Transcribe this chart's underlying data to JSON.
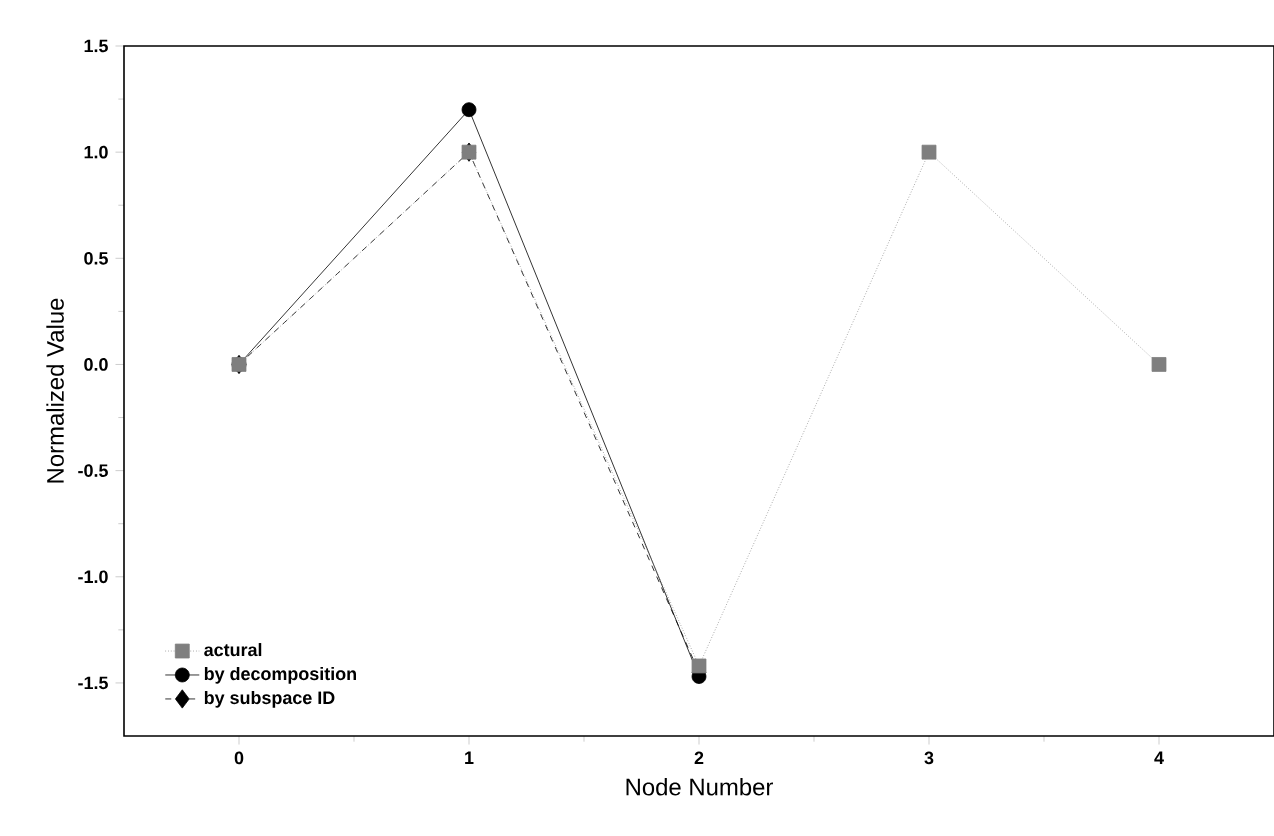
{
  "chart_data": {
    "type": "line",
    "xlabel": "Node Number",
    "ylabel": "Normalized Value",
    "xlim": [
      -0.5,
      4.5
    ],
    "ylim": [
      -1.75,
      1.5
    ],
    "xticks": [
      0,
      1,
      2,
      3,
      4
    ],
    "yticks": [
      -1.5,
      {
        "value": -1,
        "label": "-1.0"
      },
      -0.5,
      {
        "value": 0,
        "label": "0.0"
      },
      0.5,
      {
        "value": 1,
        "label": "1.0"
      },
      1.5
    ],
    "legend": "bottom left",
    "grid": false,
    "series": [
      {
        "name": "actural",
        "color": "#7f7f7f",
        "marker": "square",
        "line_style": "dotted",
        "x": [
          0,
          1,
          2,
          3,
          4
        ],
        "values": [
          0,
          1.0,
          -1.42,
          1.0,
          0
        ]
      },
      {
        "name": "by decomposition",
        "color": "#000000",
        "marker": "circle",
        "line_style": "solid",
        "x": [
          0,
          1,
          2
        ],
        "values": [
          0,
          1.2,
          -1.47
        ]
      },
      {
        "name": "by subspace ID",
        "color": "#000000",
        "marker": "diamond",
        "line_style": "dashed",
        "x": [
          0,
          1,
          2
        ],
        "values": [
          0,
          1.0,
          -1.45
        ]
      }
    ]
  }
}
